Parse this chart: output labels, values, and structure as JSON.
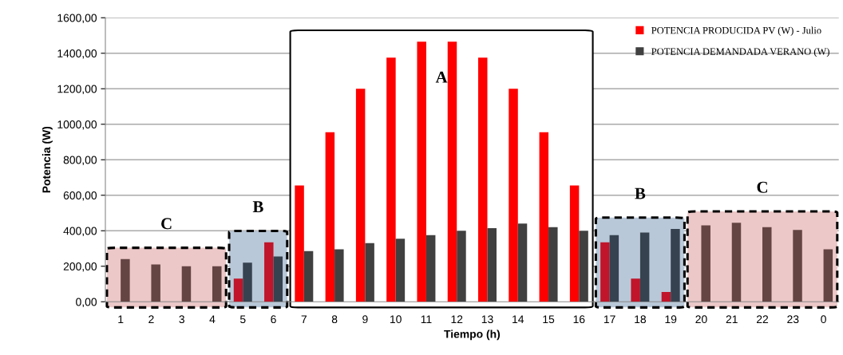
{
  "chart_data": {
    "type": "bar",
    "xlabel": "Tiempo (h)",
    "ylabel": "Potencia (W)",
    "categories": [
      "1",
      "2",
      "3",
      "4",
      "5",
      "6",
      "7",
      "8",
      "9",
      "10",
      "11",
      "12",
      "13",
      "14",
      "15",
      "16",
      "17",
      "18",
      "19",
      "20",
      "21",
      "22",
      "23",
      "0"
    ],
    "series": [
      {
        "name": "POTENCIA PRODUCIDA PV (W) - Julio",
        "color": "#ff0000",
        "colors": [
          "#ff0000",
          "#ff0000",
          "#ff0000",
          "#ff0000",
          "#c0152a",
          "#c0152a",
          "#ff0000",
          "#ff0000",
          "#ff0000",
          "#ff0000",
          "#ff0000",
          "#ff0000",
          "#ff0000",
          "#ff0000",
          "#ff0000",
          "#ff0000",
          "#c0152a",
          "#c0152a",
          "#c0152a",
          "#ff0000",
          "#ff0000",
          "#ff0000",
          "#ff0000",
          "#ff0000"
        ],
        "values": [
          0,
          0,
          0,
          0,
          130,
          335,
          655,
          955,
          1200,
          1375,
          1465,
          1465,
          1375,
          1200,
          955,
          655,
          335,
          130,
          55,
          0,
          0,
          0,
          0,
          0
        ]
      },
      {
        "name": "POTENCIA DEMANDADA VERANO (W)",
        "color": "#404040",
        "colors": [
          "#654444",
          "#654444",
          "#654444",
          "#654444",
          "#36424f",
          "#36424f",
          "#404040",
          "#404040",
          "#404040",
          "#404040",
          "#404040",
          "#404040",
          "#404040",
          "#404040",
          "#404040",
          "#404040",
          "#36424f",
          "#36424f",
          "#36424f",
          "#654444",
          "#654444",
          "#654444",
          "#654444",
          "#654444"
        ],
        "values": [
          240,
          210,
          200,
          200,
          220,
          255,
          285,
          295,
          330,
          355,
          375,
          400,
          415,
          440,
          420,
          400,
          375,
          390,
          410,
          430,
          445,
          420,
          405,
          295
        ]
      }
    ],
    "bands": [
      {
        "axis": "x",
        "from": "1",
        "to": "4",
        "label": "C",
        "color": "#ecc8c8"
      },
      {
        "axis": "x",
        "from": "5",
        "to": "6",
        "label": "B",
        "color": "#b9c8d8"
      },
      {
        "axis": "x",
        "from": "7",
        "to": "16",
        "label": "A",
        "color": "#ffffff"
      },
      {
        "axis": "x",
        "from": "17",
        "to": "19",
        "label": "B",
        "color": "#b9c8d8"
      },
      {
        "axis": "x",
        "from": "20",
        "to": "0",
        "label": "C",
        "color": "#ecc8c8"
      }
    ],
    "ylim": [
      0,
      1600
    ],
    "yticks": [
      {
        "value": 0,
        "label": "0,00"
      },
      {
        "value": 200,
        "label": "200,00"
      },
      {
        "value": 400,
        "label": "400,00"
      },
      {
        "value": 600,
        "label": "600,00"
      },
      {
        "value": 800,
        "label": "800,00"
      },
      {
        "value": 1000,
        "label": "1000,00"
      },
      {
        "value": 1200,
        "label": "1200,00"
      },
      {
        "value": 1400,
        "label": "1400,00"
      },
      {
        "value": 1600,
        "label": "1600,00"
      }
    ],
    "grid": "y",
    "legend": "top right"
  }
}
